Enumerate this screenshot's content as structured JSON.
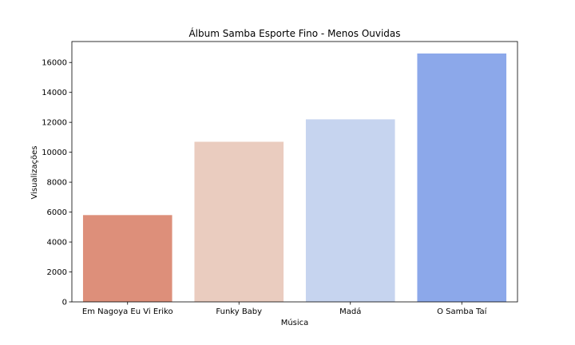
{
  "chart_data": {
    "type": "bar",
    "title": "Álbum Samba Esporte Fino - Menos Ouvidas",
    "xlabel": "Música",
    "ylabel": "Visualizações",
    "categories": [
      "Em Nagoya Eu Vi Eriko",
      "Funky Baby",
      "Madá",
      "O Samba Taí"
    ],
    "values": [
      5800,
      10700,
      12200,
      16600
    ],
    "colors": [
      "#dd8f7a",
      "#eaccbf",
      "#c6d4ef",
      "#8ca8ea"
    ],
    "ylim": [
      0,
      17400
    ],
    "yticks": [
      0,
      2000,
      4000,
      6000,
      8000,
      10000,
      12000,
      14000,
      16000
    ],
    "grid": false,
    "legend": "none"
  }
}
